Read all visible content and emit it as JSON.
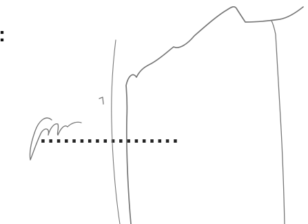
{
  "form": {
    "label_colon": ":",
    "signature_line": ".................."
  },
  "signature": {
    "kind": "handwritten-signature",
    "ink_color": "#777777"
  }
}
